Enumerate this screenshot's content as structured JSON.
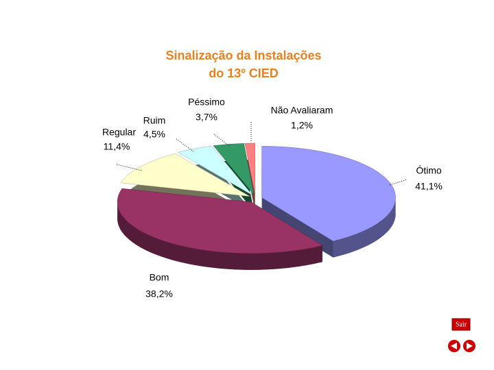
{
  "chart_data": {
    "type": "pie",
    "title": [
      "Sinalização da Instalações",
      "do 13º CIED"
    ],
    "categories": [
      "Ótimo",
      "Bom",
      "Regular",
      "Ruim",
      "Péssimo",
      "Não Avaliaram"
    ],
    "values": [
      41.1,
      38.2,
      11.4,
      4.5,
      3.7,
      1.2
    ],
    "value_labels": [
      "41,1%",
      "38,2%",
      "11,4%",
      "4,5%",
      "3,7%",
      "1,2%"
    ],
    "colors": [
      "#9999ff",
      "#993366",
      "#ffffcc",
      "#ccffff",
      "#339966",
      "#ff8080"
    ]
  },
  "navigation": {
    "exit": "Sair"
  }
}
